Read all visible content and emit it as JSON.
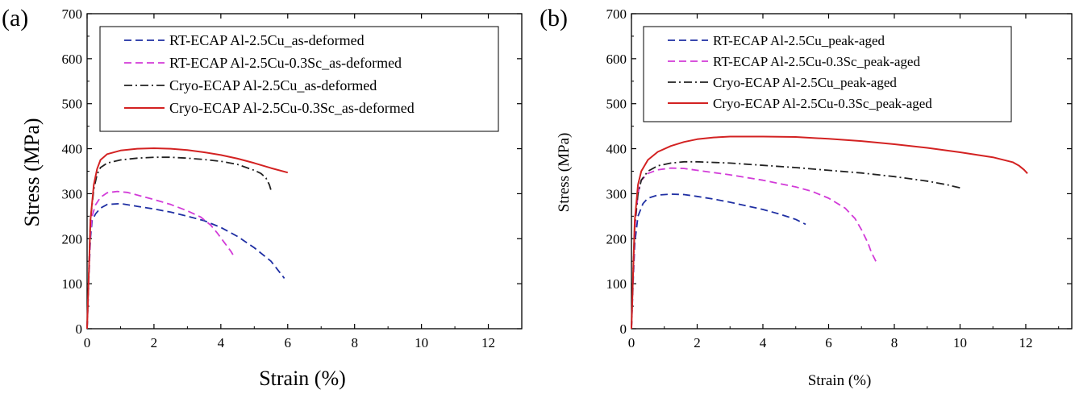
{
  "chart_data": [
    {
      "type": "line",
      "panel_label": "(a)",
      "xlabel": "Strain (%)",
      "ylabel": "Stress (MPa)",
      "xlim": [
        0,
        13.0
      ],
      "ylim": [
        0,
        700
      ],
      "xticks": [
        0,
        2,
        4,
        6,
        8,
        10,
        12
      ],
      "yticks": [
        0,
        100,
        200,
        300,
        400,
        500,
        600,
        700
      ],
      "grid": false,
      "legend_position": "top-right",
      "series": [
        {
          "name": "RT-ECAP Al-2.5Cu_as-deformed",
          "color": "#1f2fa3",
          "dash": "dashed",
          "points": [
            [
              0,
              0
            ],
            [
              0.05,
              110
            ],
            [
              0.1,
              200
            ],
            [
              0.15,
              240
            ],
            [
              0.25,
              255
            ],
            [
              0.4,
              268
            ],
            [
              0.6,
              276
            ],
            [
              1.0,
              278
            ],
            [
              1.5,
              272
            ],
            [
              2.0,
              266
            ],
            [
              2.5,
              259
            ],
            [
              3.0,
              250
            ],
            [
              3.5,
              240
            ],
            [
              4.0,
              225
            ],
            [
              4.5,
              205
            ],
            [
              5.0,
              180
            ],
            [
              5.5,
              150
            ],
            [
              5.9,
              112
            ]
          ]
        },
        {
          "name": "RT-ECAP Al-2.5Cu-0.3Sc_as-deformed",
          "color": "#d23bd8",
          "dash": "dashed",
          "points": [
            [
              0,
              0
            ],
            [
              0.05,
              110
            ],
            [
              0.1,
              210
            ],
            [
              0.15,
              250
            ],
            [
              0.25,
              275
            ],
            [
              0.4,
              292
            ],
            [
              0.6,
              302
            ],
            [
              0.9,
              305
            ],
            [
              1.2,
              303
            ],
            [
              1.6,
              295
            ],
            [
              2.0,
              287
            ],
            [
              2.5,
              276
            ],
            [
              3.0,
              262
            ],
            [
              3.4,
              248
            ],
            [
              3.7,
              230
            ],
            [
              3.9,
              212
            ],
            [
              4.1,
              192
            ],
            [
              4.3,
              172
            ],
            [
              4.4,
              160
            ]
          ]
        },
        {
          "name": "Cryo-ECAP Al-2.5Cu_as-deformed",
          "color": "#222222",
          "dash": "dashdot",
          "points": [
            [
              0,
              0
            ],
            [
              0.05,
              120
            ],
            [
              0.1,
              240
            ],
            [
              0.2,
              310
            ],
            [
              0.3,
              343
            ],
            [
              0.4,
              358
            ],
            [
              0.6,
              368
            ],
            [
              1.0,
              375
            ],
            [
              1.5,
              379
            ],
            [
              2.0,
              381
            ],
            [
              2.5,
              381
            ],
            [
              3.0,
              379
            ],
            [
              3.5,
              376
            ],
            [
              4.0,
              372
            ],
            [
              4.5,
              365
            ],
            [
              5.0,
              352
            ],
            [
              5.2,
              345
            ],
            [
              5.35,
              335
            ],
            [
              5.45,
              320
            ],
            [
              5.5,
              308
            ]
          ]
        },
        {
          "name": "Cryo-ECAP Al-2.5Cu-0.3Sc_as-deformed",
          "color": "#d32222",
          "dash": "solid",
          "points": [
            [
              0,
              0
            ],
            [
              0.05,
              120
            ],
            [
              0.1,
              240
            ],
            [
              0.2,
              320
            ],
            [
              0.3,
              355
            ],
            [
              0.4,
              375
            ],
            [
              0.6,
              388
            ],
            [
              1.0,
              396
            ],
            [
              1.5,
              400
            ],
            [
              2.0,
              401
            ],
            [
              2.5,
              400
            ],
            [
              3.0,
              397
            ],
            [
              3.5,
              392
            ],
            [
              4.0,
              386
            ],
            [
              4.5,
              378
            ],
            [
              5.0,
              368
            ],
            [
              5.5,
              357
            ],
            [
              6.0,
              347
            ]
          ]
        }
      ]
    },
    {
      "type": "line",
      "panel_label": "(b)",
      "xlabel": "Strain (%)",
      "ylabel": "Stress (MPa)",
      "xlim": [
        0,
        13.4
      ],
      "ylim": [
        0,
        700
      ],
      "xticks": [
        0,
        2,
        4,
        6,
        8,
        10,
        12
      ],
      "yticks": [
        0,
        100,
        200,
        300,
        400,
        500,
        600,
        700
      ],
      "grid": false,
      "legend_position": "top-left",
      "series": [
        {
          "name": "RT-ECAP Al-2.5Cu_peak-aged",
          "color": "#1f2fa3",
          "dash": "dashed",
          "points": [
            [
              0,
              0
            ],
            [
              0.05,
              100
            ],
            [
              0.1,
              190
            ],
            [
              0.2,
              250
            ],
            [
              0.35,
              278
            ],
            [
              0.5,
              290
            ],
            [
              0.8,
              297
            ],
            [
              1.2,
              299
            ],
            [
              1.6,
              298
            ],
            [
              2.0,
              294
            ],
            [
              2.5,
              288
            ],
            [
              3.0,
              281
            ],
            [
              3.5,
              273
            ],
            [
              4.0,
              265
            ],
            [
              4.5,
              255
            ],
            [
              5.0,
              243
            ],
            [
              5.3,
              232
            ]
          ]
        },
        {
          "name": "RT-ECAP Al-2.5Cu-0.3Sc_peak-aged",
          "color": "#d23bd8",
          "dash": "dashed",
          "points": [
            [
              0,
              0
            ],
            [
              0.05,
              110
            ],
            [
              0.1,
              220
            ],
            [
              0.2,
              300
            ],
            [
              0.3,
              330
            ],
            [
              0.5,
              345
            ],
            [
              0.8,
              353
            ],
            [
              1.2,
              357
            ],
            [
              1.6,
              356
            ],
            [
              2.0,
              352
            ],
            [
              3.0,
              342
            ],
            [
              4.0,
              330
            ],
            [
              5.0,
              315
            ],
            [
              5.5,
              305
            ],
            [
              6.0,
              290
            ],
            [
              6.5,
              268
            ],
            [
              6.8,
              245
            ],
            [
              7.0,
              220
            ],
            [
              7.2,
              190
            ],
            [
              7.3,
              170
            ],
            [
              7.45,
              148
            ]
          ]
        },
        {
          "name": "Cryo-ECAP Al-2.5Cu_peak-aged",
          "color": "#222222",
          "dash": "dashdot",
          "points": [
            [
              0,
              0
            ],
            [
              0.05,
              120
            ],
            [
              0.1,
              230
            ],
            [
              0.2,
              300
            ],
            [
              0.3,
              330
            ],
            [
              0.5,
              350
            ],
            [
              0.8,
              362
            ],
            [
              1.2,
              368
            ],
            [
              1.6,
              371
            ],
            [
              2.0,
              371
            ],
            [
              3.0,
              368
            ],
            [
              4.0,
              363
            ],
            [
              5.0,
              358
            ],
            [
              6.0,
              352
            ],
            [
              7.0,
              346
            ],
            [
              8.0,
              338
            ],
            [
              9.0,
              328
            ],
            [
              9.6,
              320
            ],
            [
              10.0,
              313
            ]
          ]
        },
        {
          "name": "Cryo-ECAP Al-2.5Cu-0.3Sc_peak-aged",
          "color": "#d32222",
          "dash": "solid",
          "points": [
            [
              0,
              0
            ],
            [
              0.05,
              120
            ],
            [
              0.1,
              240
            ],
            [
              0.2,
              320
            ],
            [
              0.3,
              350
            ],
            [
              0.5,
              375
            ],
            [
              0.8,
              393
            ],
            [
              1.2,
              406
            ],
            [
              1.6,
              415
            ],
            [
              2.0,
              421
            ],
            [
              2.5,
              425
            ],
            [
              3.0,
              427
            ],
            [
              4.0,
              427
            ],
            [
              5.0,
              426
            ],
            [
              6.0,
              422
            ],
            [
              7.0,
              417
            ],
            [
              8.0,
              410
            ],
            [
              9.0,
              402
            ],
            [
              10.0,
              392
            ],
            [
              11.0,
              381
            ],
            [
              11.6,
              370
            ],
            [
              11.8,
              362
            ],
            [
              11.95,
              353
            ],
            [
              12.05,
              345
            ]
          ]
        }
      ]
    }
  ]
}
